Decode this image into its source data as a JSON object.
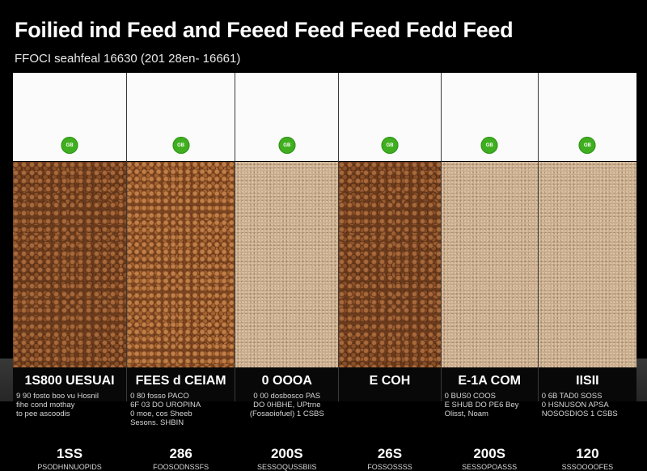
{
  "title": "Foilied ind Feed and Feeed Feed Feed Fedd Feed",
  "subtitle": "FFOCI seahfeal 16630 (201 28en- 16661)",
  "colors": {
    "badge": "#3fae1f",
    "background": "#000000",
    "band": "#333333"
  },
  "columns": [
    {
      "badge": "GB",
      "sample": "pellet-dark",
      "label": "1S800 UESUAI",
      "description": "9 90 fosto boo vu Hosnil\nfihe cond mothay\nto pee ascoodis",
      "price": "1SS",
      "price_note": "PSODHNNUOPIDS"
    },
    {
      "badge": "GB",
      "sample": "pellet-warm",
      "label": "FEES d CEIAM",
      "description": "0 80 fosso PACO\n6F 03 DO UROPINA\n0 moe, cos Sheeb\nSesons. SHBIN",
      "price": "286",
      "price_note": "FOOSODNSSFS"
    },
    {
      "badge": "GB",
      "sample": "meal",
      "label": "0 OOOA",
      "description": "0 00 dosbosco PAS\nDO 0HBHE, UPtrne\n(Fosaoiofuel) 1 CSBS",
      "price": "200S",
      "price_note": "SESSOQUSSBIIS"
    },
    {
      "badge": "GB",
      "sample": "pellet-dark",
      "label": "E COH",
      "description": "",
      "price": "26S",
      "price_note": "FOSSOSSSS"
    },
    {
      "badge": "GB",
      "sample": "meal",
      "label": "E-1A COM",
      "description": "0 BUS0 COOS\nE SHUB DO PE6 Bey\nOlisst, Noam",
      "price": "200S",
      "price_note": "SESSOPOASSS"
    },
    {
      "badge": "GB",
      "sample": "meal",
      "label": "IISII",
      "description": "0 6B TAD0 SOSS\n0 HSNUSON APSA\nNOSOSDIOS 1 CSBS",
      "price": "120",
      "price_note": "SSSOOOOFES"
    }
  ]
}
